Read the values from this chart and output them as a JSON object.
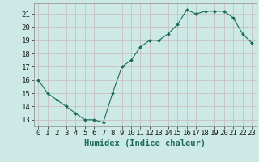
{
  "x": [
    0,
    1,
    2,
    3,
    4,
    5,
    6,
    7,
    8,
    9,
    10,
    11,
    12,
    13,
    14,
    15,
    16,
    17,
    18,
    19,
    20,
    21,
    22,
    23
  ],
  "y": [
    16.0,
    15.0,
    14.5,
    14.0,
    13.5,
    13.0,
    13.0,
    12.8,
    15.0,
    17.0,
    17.5,
    18.5,
    19.0,
    19.0,
    19.5,
    20.2,
    21.3,
    21.0,
    21.2,
    21.2,
    21.2,
    20.7,
    19.5,
    18.8
  ],
  "line_color": "#1a6b5a",
  "marker": "D",
  "marker_size": 2.0,
  "background_color": "#cce9e5",
  "grid_color": "#b0ccc8",
  "xlabel": "Humidex (Indice chaleur)",
  "ylabel_ticks": [
    13,
    14,
    15,
    16,
    17,
    18,
    19,
    20,
    21
  ],
  "ylim": [
    12.5,
    21.8
  ],
  "xlim": [
    -0.5,
    23.5
  ],
  "xticks": [
    0,
    1,
    2,
    3,
    4,
    5,
    6,
    7,
    8,
    9,
    10,
    11,
    12,
    13,
    14,
    15,
    16,
    17,
    18,
    19,
    20,
    21,
    22,
    23
  ],
  "xlabel_fontsize": 7.5,
  "tick_fontsize": 6.5
}
